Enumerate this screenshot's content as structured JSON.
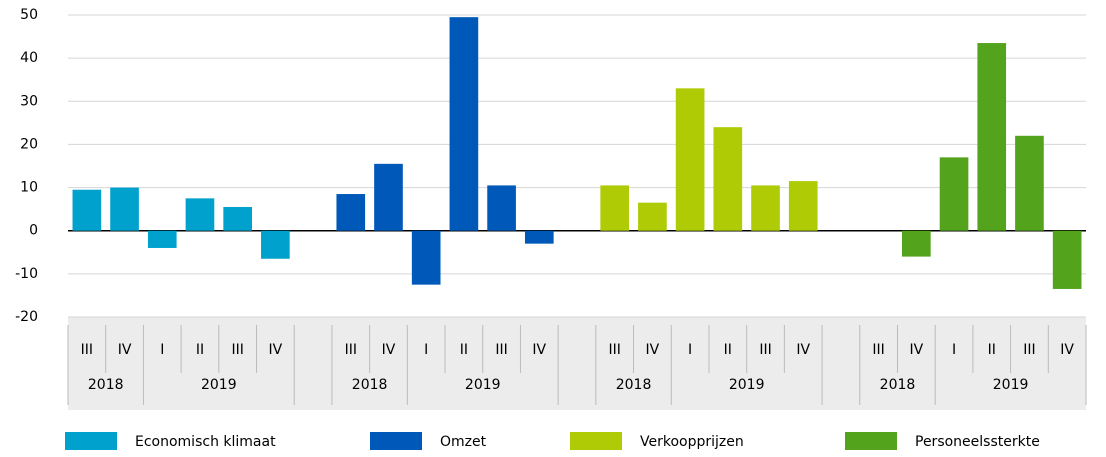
{
  "chart_data": {
    "type": "bar",
    "year_groups": [
      {
        "label": "2018",
        "quarters": [
          "III",
          "IV"
        ]
      },
      {
        "label": "2019",
        "quarters": [
          "I",
          "II",
          "III",
          "IV"
        ]
      }
    ],
    "series": [
      {
        "name": "Economisch klimaat",
        "color": "#00a1cd",
        "values": [
          9.5,
          10,
          -4,
          7.5,
          5.5,
          -6.5
        ]
      },
      {
        "name": "Omzet",
        "color": "#0058b8",
        "values": [
          8.5,
          15.5,
          -12.5,
          49.5,
          10.5,
          -3
        ]
      },
      {
        "name": "Verkoopprijzen",
        "color": "#afcb05",
        "values": [
          10.5,
          6.5,
          33,
          24,
          10.5,
          11.5
        ]
      },
      {
        "name": "Personeelssterkte",
        "color": "#53a31d",
        "values": [
          0,
          -6,
          17,
          43.5,
          22,
          -13.5
        ]
      }
    ],
    "ylim": [
      -20,
      50
    ],
    "yticks": [
      -20,
      -10,
      0,
      10,
      20,
      30,
      40,
      50
    ],
    "grid": true
  }
}
